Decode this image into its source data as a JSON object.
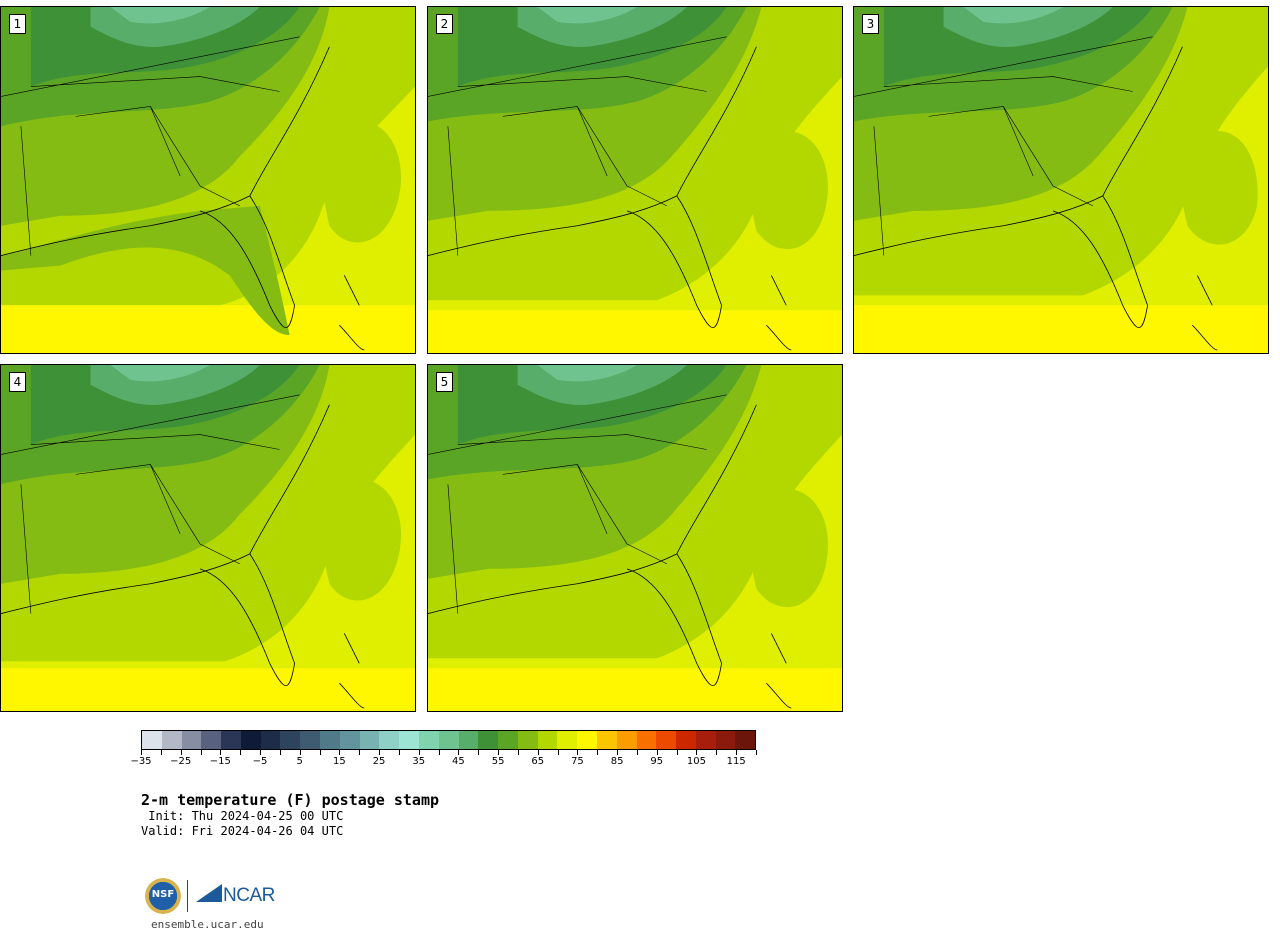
{
  "panels": [
    {
      "label": "1"
    },
    {
      "label": "2"
    },
    {
      "label": "3"
    },
    {
      "label": "4"
    },
    {
      "label": "5"
    }
  ],
  "colorbar": {
    "colors": [
      "#dde3ea",
      "#b3b7c6",
      "#878ea3",
      "#58627f",
      "#2b3555",
      "#0e1a36",
      "#1d2c48",
      "#2e435d",
      "#3f5b72",
      "#507a88",
      "#63949d",
      "#78b3b1",
      "#8ecfc6",
      "#9de4d4",
      "#80d4ad",
      "#6ec38f",
      "#58ad6a",
      "#3f9138",
      "#5aa526",
      "#85bc13",
      "#b3d800",
      "#e0ef00",
      "#fff700",
      "#fbc600",
      "#fb9c00",
      "#f97000",
      "#ed4a00",
      "#cd2700",
      "#a81e0c",
      "#8b1a0c",
      "#6c160b"
    ],
    "tick_labels": [
      "−35",
      "−25",
      "−15",
      "−5",
      "5",
      "15",
      "25",
      "35",
      "45",
      "55",
      "65",
      "75",
      "85",
      "95",
      "105",
      "115"
    ]
  },
  "title": "2-m temperature (F) postage stamp",
  "init_line": " Init: Thu 2024-04-25 00 UTC",
  "valid_line": "Valid: Fri 2024-04-26 04 UTC",
  "logo_nsf_text": "NSF",
  "logo_ncar_text": "NCAR",
  "site": "ensemble.ucar.edu"
}
